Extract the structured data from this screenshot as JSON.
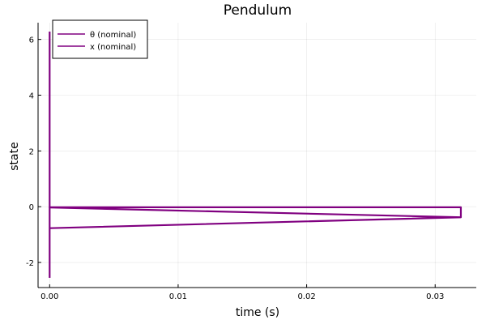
{
  "chart_data": {
    "type": "line",
    "title": "Pendulum",
    "xlabel": "time (s)",
    "ylabel": "state",
    "xlim": [
      -0.0009,
      0.0332
    ],
    "ylim": [
      -2.9,
      6.6
    ],
    "xticks": [
      0.0,
      0.01,
      0.02,
      0.03
    ],
    "xtick_labels": [
      "0.00",
      "0.01",
      "0.02",
      "0.03"
    ],
    "yticks": [
      -2,
      0,
      2,
      4,
      6
    ],
    "ytick_labels": [
      "-2",
      "0",
      "2",
      "4",
      "6"
    ],
    "grid": true,
    "legend_position": "top-left",
    "series": [
      {
        "name": "θ (nominal)",
        "color": "#800080",
        "x": [
          0.0,
          0.0,
          0.0,
          0.0,
          0.0,
          0.032,
          0.0
        ],
        "y": [
          6.28,
          3.14,
          0.0,
          -0.03,
          -0.03,
          -0.38,
          -0.77
        ]
      },
      {
        "name": "x (nominal)",
        "color": "#800080",
        "x": [
          0.0,
          0.0,
          0.0,
          0.032,
          0.032
        ],
        "y": [
          -2.55,
          -0.6,
          -0.02,
          -0.02,
          -0.38
        ]
      }
    ]
  }
}
